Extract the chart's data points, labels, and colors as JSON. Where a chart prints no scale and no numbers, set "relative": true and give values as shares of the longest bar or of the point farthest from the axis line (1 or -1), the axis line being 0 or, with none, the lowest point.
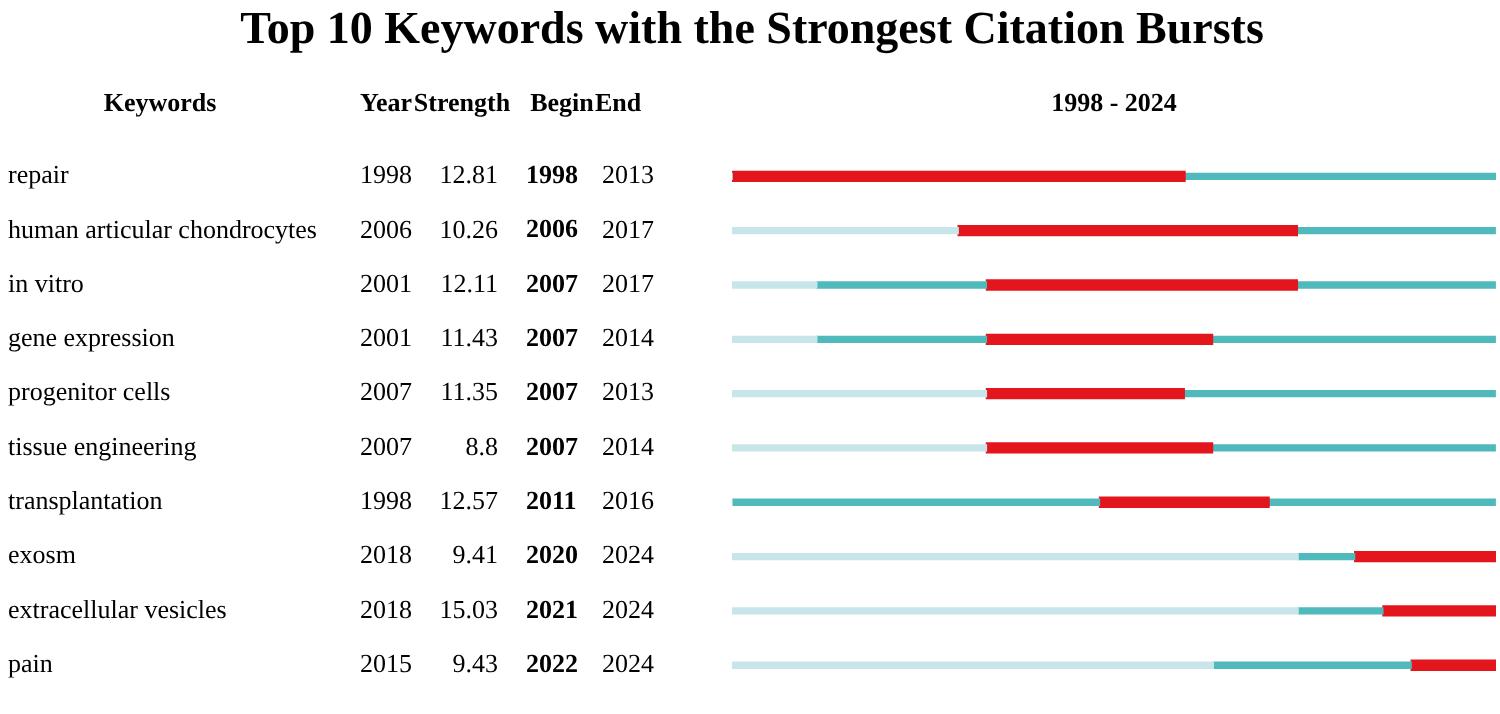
{
  "chart_data": {
    "type": "bar",
    "orientation": "horizontal",
    "title": "Top 10 Keywords with the Strongest Citation Bursts",
    "xlabel": "1998 - 2024",
    "ylabel": "Keywords",
    "categories": [
      "repair",
      "human articular chondrocytes",
      "in vitro",
      "gene expression",
      "progenitor cells",
      "tissue engineering",
      "transplantation",
      "exosm",
      "extracellular vesicles",
      "pain"
    ],
    "stacked": true,
    "relative": true,
    "tick_labels": "y",
    "grid": false,
    "legend": false,
    "series": [
      {
        "color": "#c8e6ea",
        "values": [
          0,
          0.296,
          0.111,
          0.111,
          0.333,
          0.333,
          0,
          0.741,
          0.741,
          0.63
        ]
      },
      {
        "color": "#4fb9bb",
        "values": [
          0,
          0,
          0.222,
          0.222,
          0,
          0,
          0.481,
          0.074,
          0.111,
          0.259
        ]
      },
      {
        "color": "#e3161d",
        "values": [
          0.593,
          0.444,
          0.407,
          0.296,
          0.259,
          0.296,
          0.222,
          0.185,
          0.148,
          0.111
        ]
      },
      {
        "color": "#4fb9bb",
        "values": [
          0.407,
          0.259,
          0.259,
          0.37,
          0.407,
          0.37,
          0.296,
          0,
          0,
          0
        ]
      }
    ],
    "annotations": [
      "Year",
      "Strength",
      "Begin",
      "End",
      "1998",
      "12.81",
      "1998",
      "2013",
      "2006",
      "10.26",
      "2006",
      "2017",
      "2001",
      "12.11",
      "2007",
      "2017",
      "2001",
      "11.43",
      "2007",
      "2014",
      "2007",
      "11.35",
      "2007",
      "2013",
      "2007",
      "8.8",
      "2007",
      "2014",
      "1998",
      "12.57",
      "2011",
      "2016",
      "2018",
      "9.41",
      "2020",
      "2024",
      "2018",
      "15.03",
      "2021",
      "2024",
      "2015",
      "9.43",
      "2022",
      "2024"
    ]
  }
}
